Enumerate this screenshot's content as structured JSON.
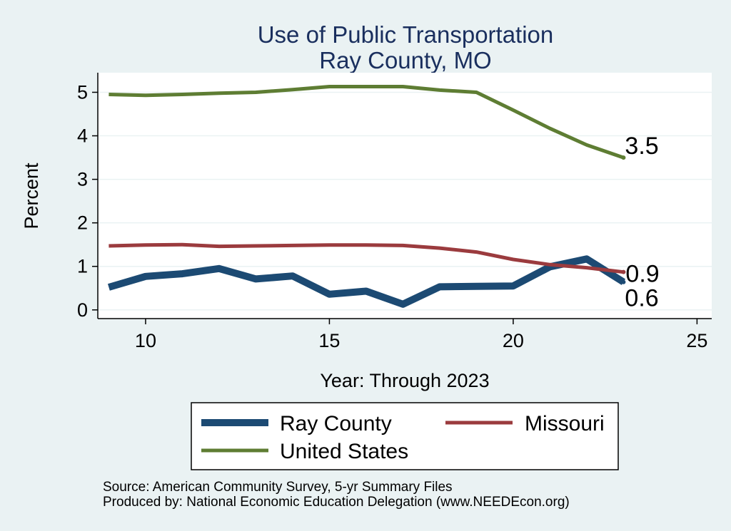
{
  "chart_data": {
    "type": "line",
    "title": "Use of Public Transportation",
    "subtitle": "Ray County, MO",
    "xlabel": "Year: Through 2023",
    "ylabel": "Percent",
    "xlim": [
      8.7,
      25.4
    ],
    "ylim": [
      -0.2,
      5.45
    ],
    "xticks": [
      10,
      15,
      20,
      25
    ],
    "yticks": [
      0,
      1,
      2,
      3,
      4,
      5
    ],
    "grid": true,
    "legend_position": "bottom",
    "x": [
      9,
      10,
      11,
      12,
      13,
      14,
      15,
      16,
      17,
      18,
      19,
      20,
      21,
      22,
      23
    ],
    "series": [
      {
        "name": "Ray County",
        "color": "#1c4a73",
        "width": 10,
        "values": [
          0.52,
          0.77,
          0.83,
          0.95,
          0.71,
          0.78,
          0.36,
          0.43,
          0.13,
          0.53,
          0.54,
          0.55,
          0.99,
          1.17,
          0.64
        ],
        "end_label": "0.6"
      },
      {
        "name": "Missouri",
        "color": "#9b3b3e",
        "width": 5,
        "values": [
          1.47,
          1.49,
          1.5,
          1.46,
          1.47,
          1.48,
          1.49,
          1.49,
          1.48,
          1.42,
          1.33,
          1.16,
          1.04,
          0.97,
          0.87
        ],
        "end_label": "0.9"
      },
      {
        "name": "United States",
        "color": "#5e7d33",
        "width": 5,
        "values": [
          4.95,
          4.93,
          4.95,
          4.98,
          5.0,
          5.06,
          5.13,
          5.13,
          5.13,
          5.05,
          5.0,
          4.59,
          4.17,
          3.79,
          3.5
        ],
        "end_label": "3.5"
      }
    ],
    "notes": [
      "Source: American Community Survey, 5-yr Summary Files",
      "Produced by: National Economic Education Delegation (www.NEEDEcon.org)"
    ]
  }
}
